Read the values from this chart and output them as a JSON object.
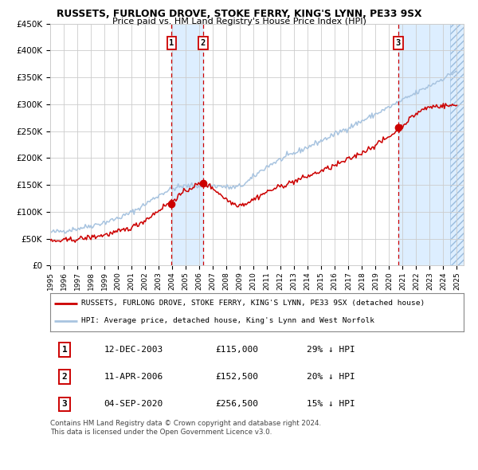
{
  "title": "RUSSETS, FURLONG DROVE, STOKE FERRY, KING'S LYNN, PE33 9SX",
  "subtitle": "Price paid vs. HM Land Registry's House Price Index (HPI)",
  "ylim": [
    0,
    450000
  ],
  "x_start_year": 1995,
  "x_end_year": 2025,
  "sale1_date": "12-DEC-2003",
  "sale1_price": 115000,
  "sale1_year": 2003.95,
  "sale1_pct": "29%",
  "sale2_date": "11-APR-2006",
  "sale2_price": 152500,
  "sale2_year": 2006.28,
  "sale2_pct": "20%",
  "sale3_date": "04-SEP-2020",
  "sale3_price": 256500,
  "sale3_year": 2020.67,
  "sale3_pct": "15%",
  "hpi_color": "#a8c4e0",
  "price_color": "#cc0000",
  "dot_color": "#cc0000",
  "vline_color": "#cc0000",
  "shade_color": "#ddeeff",
  "legend_label_price": "RUSSETS, FURLONG DROVE, STOKE FERRY, KING'S LYNN, PE33 9SX (detached house)",
  "legend_label_hpi": "HPI: Average price, detached house, King's Lynn and West Norfolk",
  "footer": "Contains HM Land Registry data © Crown copyright and database right 2024.\nThis data is licensed under the Open Government Licence v3.0.",
  "background_color": "#ffffff",
  "grid_color": "#cccccc"
}
